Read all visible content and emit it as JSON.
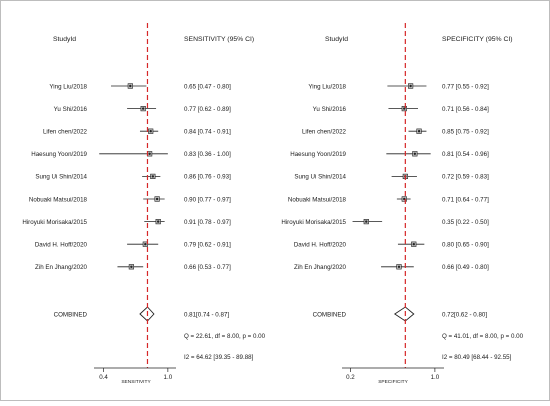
{
  "chart_data": [
    {
      "type": "forest",
      "metric_header": "SENSITIVITY (95% CI)",
      "studyid_header": "StudyId",
      "xlabel": "SENSITIVITY",
      "xlim": [
        0.33,
        1.02
      ],
      "xticks": [
        0.4,
        1.0
      ],
      "xtick_labels": [
        "0.4",
        "1.0"
      ],
      "pooled_reference": 0.81,
      "studies": [
        {
          "label": "Ying Liu/2018",
          "est": 0.65,
          "lo": 0.47,
          "hi": 0.8,
          "text": "0.65 [0.47 - 0.80]"
        },
        {
          "label": "Yu Shi/2016",
          "est": 0.77,
          "lo": 0.62,
          "hi": 0.89,
          "text": "0.77 [0.62 - 0.89]"
        },
        {
          "label": "Lifen chen/2022",
          "est": 0.84,
          "lo": 0.74,
          "hi": 0.91,
          "text": "0.84 [0.74 - 0.91]"
        },
        {
          "label": "Haesung Yoon/2019",
          "est": 0.83,
          "lo": 0.36,
          "hi": 1.0,
          "text": "0.83 [0.36 - 1.00]"
        },
        {
          "label": "Sung Ui Shin/2014",
          "est": 0.86,
          "lo": 0.76,
          "hi": 0.93,
          "text": "0.86 [0.76 - 0.93]"
        },
        {
          "label": "Nobuaki Matsui/2018",
          "est": 0.9,
          "lo": 0.77,
          "hi": 0.97,
          "text": "0.90 [0.77 - 0.97]"
        },
        {
          "label": "Hiroyuki Morisaka/2015",
          "est": 0.91,
          "lo": 0.78,
          "hi": 0.97,
          "text": "0.91 [0.78 - 0.97]"
        },
        {
          "label": "David H. Hoff/2020",
          "est": 0.79,
          "lo": 0.62,
          "hi": 0.91,
          "text": "0.79 [0.62 - 0.91]"
        },
        {
          "label": "Zih En Jhang/2020",
          "est": 0.66,
          "lo": 0.53,
          "hi": 0.77,
          "text": "0.66 [0.53 - 0.77]"
        }
      ],
      "combined": {
        "label": "COMBINED",
        "est": 0.81,
        "lo": 0.74,
        "hi": 0.87,
        "text": "0.81[0.74 - 0.87]"
      },
      "stats": [
        "Q = 22.61, df = 8.00, p =  0.00",
        "I2 = 64.62 [39.35 - 89.88]"
      ]
    },
    {
      "type": "forest",
      "metric_header": "SPECIFICITY (95% CI)",
      "studyid_header": "StudyId",
      "xlabel": "SPECIFICITY",
      "xlim": [
        0.12,
        1.02
      ],
      "xticks": [
        0.2,
        1.0
      ],
      "xtick_labels": [
        "0.2",
        "1.0"
      ],
      "pooled_reference": 0.72,
      "studies": [
        {
          "label": "Ying Liu/2018",
          "est": 0.77,
          "lo": 0.55,
          "hi": 0.92,
          "text": "0.77 [0.55 - 0.92]"
        },
        {
          "label": "Yu Shi/2016",
          "est": 0.71,
          "lo": 0.56,
          "hi": 0.84,
          "text": "0.71 [0.56 - 0.84]"
        },
        {
          "label": "Lifen chen/2022",
          "est": 0.85,
          "lo": 0.75,
          "hi": 0.92,
          "text": "0.85 [0.75 - 0.92]"
        },
        {
          "label": "Haesung Yoon/2019",
          "est": 0.81,
          "lo": 0.54,
          "hi": 0.96,
          "text": "0.81 [0.54 - 0.96]"
        },
        {
          "label": "Sung Ui Shin/2014",
          "est": 0.72,
          "lo": 0.59,
          "hi": 0.83,
          "text": "0.72 [0.59 - 0.83]"
        },
        {
          "label": "Nobuaki Matsui/2018",
          "est": 0.71,
          "lo": 0.64,
          "hi": 0.77,
          "text": "0.71 [0.64 - 0.77]"
        },
        {
          "label": "Hiroyuki Morisaka/2015",
          "est": 0.35,
          "lo": 0.22,
          "hi": 0.5,
          "text": "0.35 [0.22 - 0.50]"
        },
        {
          "label": "David H. Hoff/2020",
          "est": 0.8,
          "lo": 0.65,
          "hi": 0.9,
          "text": "0.80 [0.65 - 0.90]"
        },
        {
          "label": "Zih En Jhang/2020",
          "est": 0.66,
          "lo": 0.49,
          "hi": 0.8,
          "text": "0.66 [0.49 - 0.80]"
        }
      ],
      "combined": {
        "label": "COMBINED",
        "est": 0.72,
        "lo": 0.62,
        "hi": 0.8,
        "text": "0.72[0.62 - 0.80]"
      },
      "stats": [
        "Q = 41.01, df = 8.00, p =  0.00",
        "I2 = 80.49 [68.44 - 92.55]"
      ]
    }
  ],
  "colors": {
    "reference_line": "#d62728",
    "marks": "#222222",
    "text": "#1a1a1a",
    "border": "#bdbdbd"
  }
}
